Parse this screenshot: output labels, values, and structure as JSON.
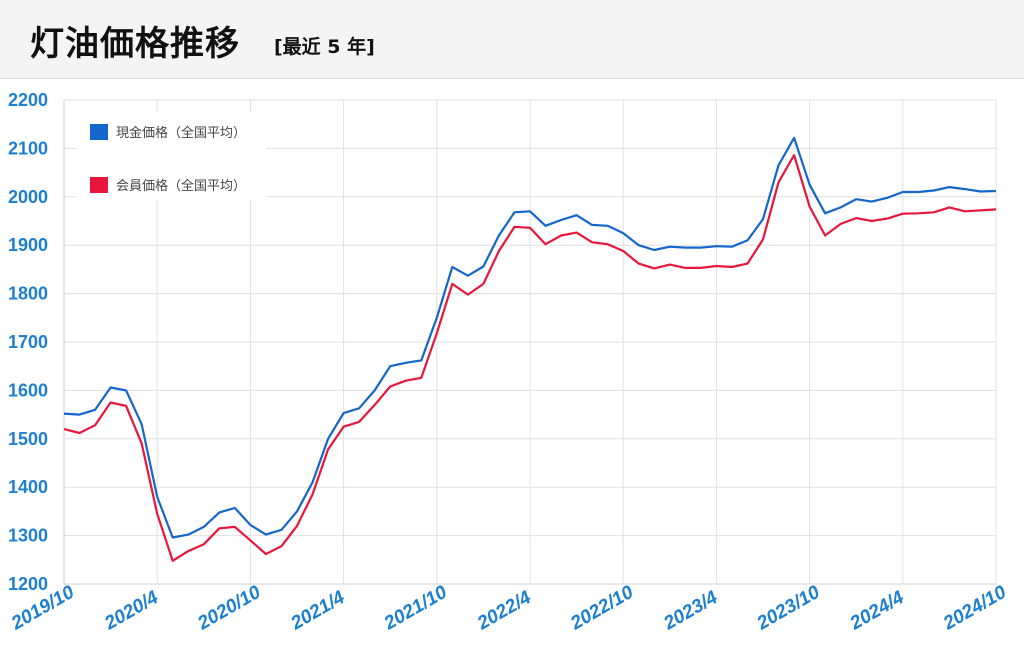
{
  "header": {
    "title": "灯油価格推移",
    "subtitle": "[最近 5 年]"
  },
  "colors": {
    "cash": "#1466cc",
    "member": "#e8163c",
    "tick": "#1d7fd0",
    "grid": "#e0e0e0"
  },
  "chart_data": {
    "type": "line",
    "ylim": [
      1200,
      2200
    ],
    "yticks": [
      1200,
      1300,
      1400,
      1500,
      1600,
      1700,
      1800,
      1900,
      2000,
      2100,
      2200
    ],
    "xticks": [
      "2019/10",
      "2020/4",
      "2020/10",
      "2021/4",
      "2021/10",
      "2022/4",
      "2022/10",
      "2023/4",
      "2023/10",
      "2024/4",
      "2024/10"
    ],
    "x": [
      "2019/10",
      "2019/11",
      "2019/12",
      "2020/1",
      "2020/2",
      "2020/3",
      "2020/4",
      "2020/5",
      "2020/6",
      "2020/7",
      "2020/8",
      "2020/9",
      "2020/10",
      "2020/11",
      "2020/12",
      "2021/1",
      "2021/2",
      "2021/3",
      "2021/4",
      "2021/5",
      "2021/6",
      "2021/7",
      "2021/8",
      "2021/9",
      "2021/10",
      "2021/11",
      "2021/12",
      "2022/1",
      "2022/2",
      "2022/3",
      "2022/4",
      "2022/5",
      "2022/6",
      "2022/7",
      "2022/8",
      "2022/9",
      "2022/10",
      "2022/11",
      "2022/12",
      "2023/1",
      "2023/2",
      "2023/3",
      "2023/4",
      "2023/5",
      "2023/6",
      "2023/7",
      "2023/8",
      "2023/9",
      "2023/10",
      "2023/11",
      "2023/12",
      "2024/1",
      "2024/2",
      "2024/3",
      "2024/4",
      "2024/5",
      "2024/6",
      "2024/7",
      "2024/8",
      "2024/9",
      "2024/10"
    ],
    "series": [
      {
        "name": "現金価格（全国平均）",
        "color": "#1466cc",
        "values": [
          1552,
          1550,
          1560,
          1606,
          1600,
          1530,
          1380,
          1296,
          1302,
          1318,
          1348,
          1357,
          1322,
          1302,
          1312,
          1350,
          1410,
          1500,
          1553,
          1563,
          1600,
          1650,
          1657,
          1662,
          1750,
          1855,
          1837,
          1856,
          1920,
          1968,
          1970,
          1940,
          1952,
          1962,
          1942,
          1940,
          1925,
          1900,
          1890,
          1897,
          1895,
          1895,
          1898,
          1897,
          1910,
          1954,
          2065,
          2122,
          2025,
          1966,
          1978,
          1995,
          1990,
          1998,
          2010,
          2010,
          2013,
          2020,
          2016,
          2011,
          2012
        ]
      },
      {
        "name": "会員価格（全国平均）",
        "color": "#e8163c",
        "values": [
          1520,
          1512,
          1528,
          1575,
          1568,
          1490,
          1345,
          1248,
          1268,
          1282,
          1315,
          1318,
          1290,
          1262,
          1278,
          1320,
          1385,
          1478,
          1525,
          1535,
          1570,
          1608,
          1620,
          1626,
          1718,
          1820,
          1798,
          1820,
          1888,
          1938,
          1936,
          1902,
          1920,
          1926,
          1906,
          1902,
          1888,
          1862,
          1852,
          1860,
          1853,
          1853,
          1857,
          1855,
          1862,
          1912,
          2030,
          2086,
          1980,
          1920,
          1944,
          1956,
          1950,
          1955,
          1965,
          1966,
          1968,
          1978,
          1970,
          1972,
          1974
        ]
      }
    ]
  }
}
